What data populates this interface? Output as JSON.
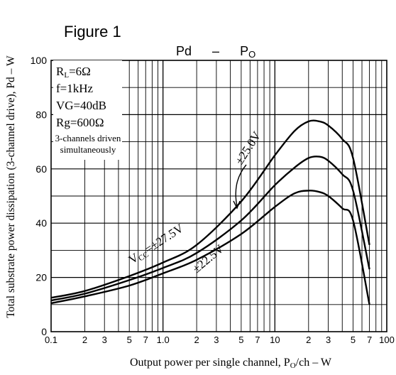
{
  "chart_data": {
    "type": "line",
    "figure_label": "Figure 1",
    "title": {
      "main": "Pd",
      "dash": "–",
      "sym": "P",
      "sub": "O"
    },
    "ylabel": "Total substrate power dissipation (3-channel drive), Pd – W",
    "xlabel": {
      "pre": "Output power per single channel, P",
      "sub": "O",
      "post": "/ch – W"
    },
    "x_scale": "log",
    "xlim": [
      0.1,
      100
    ],
    "ylim": [
      0,
      100
    ],
    "grid": true,
    "x_ticks": [
      {
        "v": 0.1,
        "t": "0.1"
      },
      {
        "v": 0.2,
        "t": "2"
      },
      {
        "v": 0.3,
        "t": "3"
      },
      {
        "v": 0.5,
        "t": "5"
      },
      {
        "v": 0.7,
        "t": "7"
      },
      {
        "v": 1,
        "t": "1.0"
      },
      {
        "v": 2,
        "t": "2"
      },
      {
        "v": 3,
        "t": "3"
      },
      {
        "v": 5,
        "t": "5"
      },
      {
        "v": 7,
        "t": "7"
      },
      {
        "v": 10,
        "t": "10"
      },
      {
        "v": 20,
        "t": "2"
      },
      {
        "v": 30,
        "t": "3"
      },
      {
        "v": 50,
        "t": "5"
      },
      {
        "v": 70,
        "t": "7"
      },
      {
        "v": 100,
        "t": "100"
      }
    ],
    "y_ticks": [
      {
        "v": 0,
        "t": "0"
      },
      {
        "v": 20,
        "t": "20"
      },
      {
        "v": 40,
        "t": "40"
      },
      {
        "v": 60,
        "t": "60"
      },
      {
        "v": 80,
        "t": "80"
      },
      {
        "v": 100,
        "t": "100"
      }
    ],
    "conditions": [
      {
        "k": "R",
        "sub": "L",
        "rest": "=6Ω"
      },
      {
        "k": "f=1kHz",
        "sub": "",
        "rest": ""
      },
      {
        "k": "VG=40dB",
        "sub": "",
        "rest": ""
      },
      {
        "k": "Rg=600Ω",
        "sub": "",
        "rest": ""
      }
    ],
    "note": [
      "3-channels driven",
      "simultaneously"
    ],
    "series": [
      {
        "name": "VCC = ±27.5V",
        "x": [
          0.1,
          0.2,
          0.5,
          1,
          2,
          5,
          10,
          15,
          20,
          25,
          30,
          40,
          50,
          70
        ],
        "y": [
          12.5,
          15,
          20.5,
          25.5,
          32,
          48,
          65,
          74,
          77.5,
          77.5,
          76,
          71,
          64,
          32
        ]
      },
      {
        "name": "±25.0V",
        "x": [
          0.1,
          0.2,
          0.5,
          1,
          2,
          5,
          10,
          15,
          20,
          25,
          30,
          40,
          50,
          70
        ],
        "y": [
          11.5,
          14,
          19,
          23.5,
          29,
          41,
          54,
          60.5,
          64,
          64.5,
          63,
          58,
          52,
          23
        ]
      },
      {
        "name": "±22.5V",
        "x": [
          0.1,
          0.2,
          0.5,
          1,
          2,
          5,
          10,
          15,
          20,
          25,
          30,
          40,
          50,
          70
        ],
        "y": [
          10.5,
          13,
          17,
          21.5,
          26.5,
          36,
          46,
          51,
          52,
          51.5,
          50,
          45.5,
          41,
          10
        ]
      }
    ],
    "annotations": {
      "vcc": {
        "pre": "V",
        "sub": "CC",
        "post": "=±27.5V"
      },
      "mid": "±25.0V",
      "low": "±22.5V"
    },
    "colors": {
      "line": "#000000",
      "grid": "#000000",
      "background": "#ffffff"
    }
  }
}
